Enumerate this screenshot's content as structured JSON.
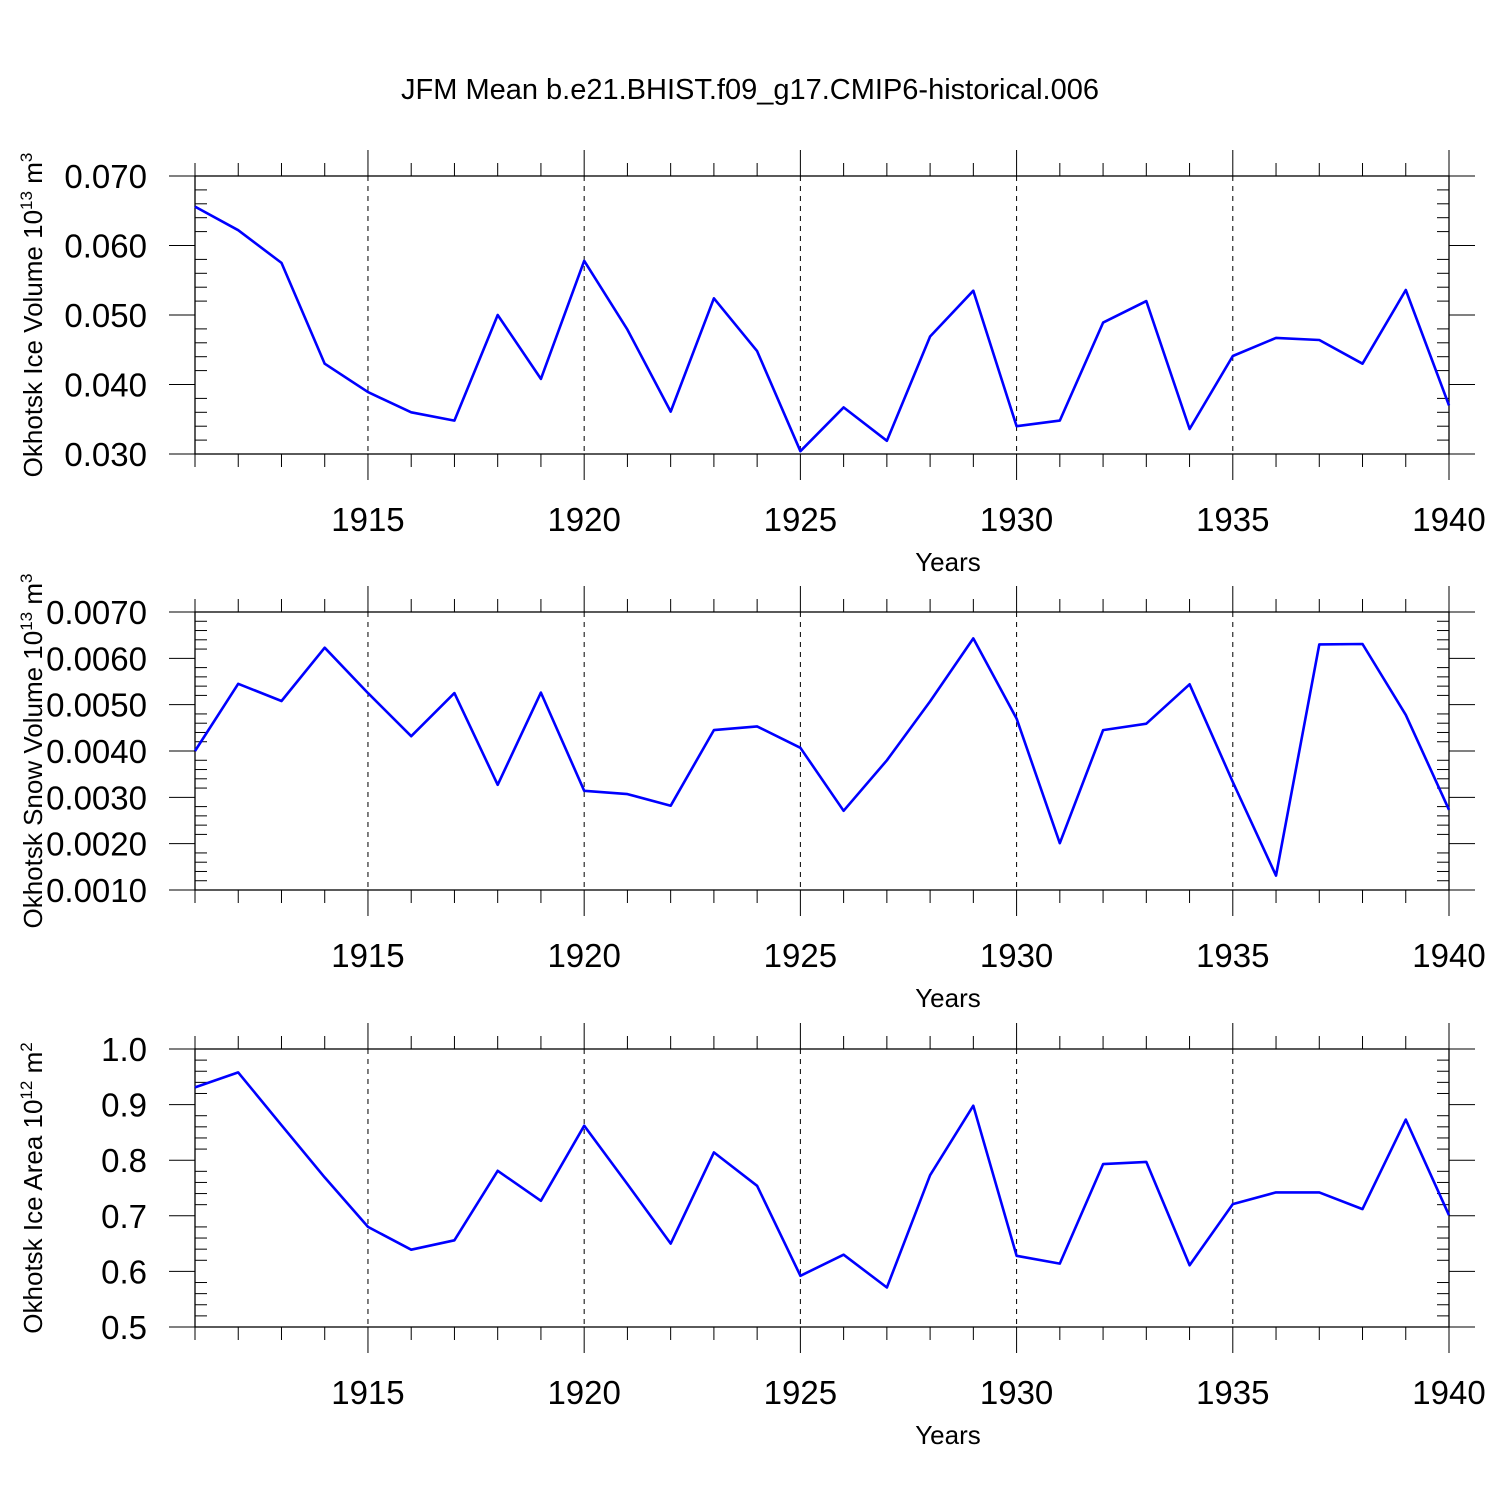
{
  "figure": {
    "title": "JFM Mean b.e21.BHIST.f09_g17.CMIP6-historical.006"
  },
  "chart_data": [
    {
      "type": "line",
      "ylabel": "Okhotsk Ice Volume 10",
      "ylabel_exp": "13",
      "ylabel_unit": "m",
      "ylabel_unit_exp": "3",
      "xlabel": "Years",
      "xlim": [
        1911,
        1940
      ],
      "ylim": [
        0.03,
        0.07
      ],
      "yticks": [
        0.03,
        0.04,
        0.05,
        0.06,
        0.07
      ],
      "ytick_labels": [
        "0.030",
        "0.040",
        "0.050",
        "0.060",
        "0.070"
      ],
      "xticks": [
        1915,
        1920,
        1925,
        1930,
        1935,
        1940
      ],
      "xtick_labels": [
        "1915",
        "1920",
        "1925",
        "1930",
        "1935",
        "1940"
      ],
      "vgrid_dashed": [
        1915,
        1920,
        1925,
        1930,
        1935
      ],
      "line_color": "#0000ff",
      "x": [
        1911,
        1912,
        1913,
        1914,
        1915,
        1916,
        1917,
        1918,
        1919,
        1920,
        1921,
        1922,
        1923,
        1924,
        1925,
        1926,
        1927,
        1928,
        1929,
        1930,
        1931,
        1932,
        1933,
        1934,
        1935,
        1936,
        1937,
        1938,
        1939,
        1940
      ],
      "values": [
        0.0656,
        0.0622,
        0.0575,
        0.043,
        0.0389,
        0.036,
        0.0348,
        0.05,
        0.0408,
        0.0578,
        0.0479,
        0.0361,
        0.0524,
        0.0448,
        0.0304,
        0.0367,
        0.0319,
        0.0469,
        0.0535,
        0.034,
        0.0348,
        0.0489,
        0.052,
        0.0336,
        0.0441,
        0.0467,
        0.0464,
        0.043,
        0.0536,
        0.037
      ]
    },
    {
      "type": "line",
      "ylabel": "Okhotsk Snow Volume 10",
      "ylabel_exp": "13",
      "ylabel_unit": "m",
      "ylabel_unit_exp": "3",
      "xlabel": "Years",
      "xlim": [
        1911,
        1940
      ],
      "ylim": [
        0.001,
        0.007
      ],
      "yticks": [
        0.001,
        0.002,
        0.003,
        0.004,
        0.005,
        0.006,
        0.007
      ],
      "ytick_labels": [
        "0.0010",
        "0.0020",
        "0.0030",
        "0.0040",
        "0.0050",
        "0.0060",
        "0.0070"
      ],
      "xticks": [
        1915,
        1920,
        1925,
        1930,
        1935,
        1940
      ],
      "xtick_labels": [
        "1915",
        "1920",
        "1925",
        "1930",
        "1935",
        "1940"
      ],
      "vgrid_dashed": [
        1915,
        1920,
        1925,
        1930,
        1935
      ],
      "line_color": "#0000ff",
      "x": [
        1911,
        1912,
        1913,
        1914,
        1915,
        1916,
        1917,
        1918,
        1919,
        1920,
        1921,
        1922,
        1923,
        1924,
        1925,
        1926,
        1927,
        1928,
        1929,
        1930,
        1931,
        1932,
        1933,
        1934,
        1935,
        1936,
        1937,
        1938,
        1939,
        1940
      ],
      "values": [
        0.004,
        0.00545,
        0.00508,
        0.00623,
        0.00525,
        0.00432,
        0.00525,
        0.00327,
        0.00526,
        0.00314,
        0.00307,
        0.00282,
        0.00445,
        0.00453,
        0.00407,
        0.00271,
        0.0038,
        0.00507,
        0.00643,
        0.0047,
        0.00201,
        0.00445,
        0.00459,
        0.00544,
        0.00333,
        0.00131,
        0.0063,
        0.00631,
        0.00478,
        0.00273
      ]
    },
    {
      "type": "line",
      "ylabel": "Okhotsk Ice Area 10",
      "ylabel_exp": "12",
      "ylabel_unit": "m",
      "ylabel_unit_exp": "2",
      "xlabel": "Years",
      "xlim": [
        1911,
        1940
      ],
      "ylim": [
        0.5,
        1.0
      ],
      "yticks": [
        0.5,
        0.6,
        0.7,
        0.8,
        0.9,
        1.0
      ],
      "ytick_labels": [
        "0.5",
        "0.6",
        "0.7",
        "0.8",
        "0.9",
        "1.0"
      ],
      "xticks": [
        1915,
        1920,
        1925,
        1930,
        1935,
        1940
      ],
      "xtick_labels": [
        "1915",
        "1920",
        "1925",
        "1930",
        "1935",
        "1940"
      ],
      "vgrid_dashed": [
        1915,
        1920,
        1925,
        1930,
        1935
      ],
      "line_color": "#0000ff",
      "x": [
        1911,
        1912,
        1913,
        1914,
        1915,
        1916,
        1917,
        1918,
        1919,
        1920,
        1921,
        1922,
        1923,
        1924,
        1925,
        1926,
        1927,
        1928,
        1929,
        1930,
        1931,
        1932,
        1933,
        1934,
        1935,
        1936,
        1937,
        1938,
        1939,
        1940
      ],
      "values": [
        0.931,
        0.958,
        0.863,
        0.769,
        0.68,
        0.639,
        0.656,
        0.781,
        0.727,
        0.862,
        0.757,
        0.65,
        0.814,
        0.754,
        0.592,
        0.63,
        0.571,
        0.773,
        0.898,
        0.628,
        0.614,
        0.793,
        0.797,
        0.611,
        0.721,
        0.742,
        0.742,
        0.712,
        0.873,
        0.701
      ]
    }
  ]
}
